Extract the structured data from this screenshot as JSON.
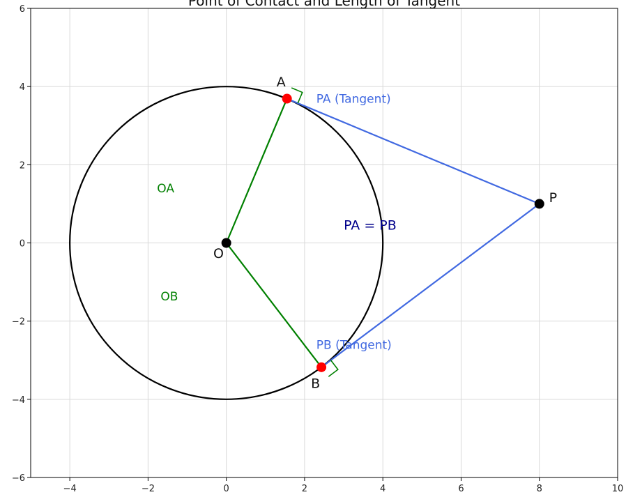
{
  "chart_data": {
    "type": "scatter",
    "title": "Point of Contact and Length of Tangent",
    "xlabel": "",
    "ylabel": "",
    "xlim": [
      -5,
      10
    ],
    "ylim": [
      -6,
      6
    ],
    "xticks": [
      -4,
      -2,
      0,
      2,
      4,
      6,
      8,
      10
    ],
    "yticks": [
      -6,
      -4,
      -2,
      0,
      2,
      4,
      6
    ],
    "xtick_labels": [
      "−4",
      "−2",
      "0",
      "2",
      "4",
      "6",
      "8",
      "10"
    ],
    "ytick_labels": [
      "−6",
      "−4",
      "−2",
      "0",
      "2",
      "4",
      "6"
    ],
    "grid": true,
    "circle": {
      "center": [
        0,
        0
      ],
      "radius": 4,
      "color": "#000000"
    },
    "points": [
      {
        "label": "O",
        "x": 0,
        "y": 0,
        "color": "#000000",
        "label_dx": -0.2,
        "label_dy": -0.28
      },
      {
        "label": "P",
        "x": 8,
        "y": 1,
        "color": "#000000",
        "label_dx": 0.35,
        "label_dy": 0.15
      },
      {
        "label": "A",
        "x": 1.55,
        "y": 3.69,
        "color": "#ff0000",
        "label_dx": -0.15,
        "label_dy": 0.42
      },
      {
        "label": "B",
        "x": 2.43,
        "y": -3.18,
        "color": "#ff0000",
        "label_dx": -0.15,
        "label_dy": -0.42
      }
    ],
    "segments": [
      {
        "name": "OA",
        "from": [
          0,
          0
        ],
        "to": [
          1.55,
          3.69
        ],
        "color": "#008000"
      },
      {
        "name": "OB",
        "from": [
          0,
          0
        ],
        "to": [
          2.43,
          -3.18
        ],
        "color": "#008000"
      },
      {
        "name": "PA",
        "from": [
          8,
          1
        ],
        "to": [
          1.55,
          3.69
        ],
        "color": "#4169e1"
      },
      {
        "name": "PB",
        "from": [
          8,
          1
        ],
        "to": [
          2.43,
          -3.18
        ],
        "color": "#4169e1"
      }
    ],
    "right_angles": [
      {
        "vertex": [
          1.55,
          3.69
        ],
        "size": 0.3,
        "color": "#008000"
      },
      {
        "vertex": [
          2.43,
          -3.18
        ],
        "size": 0.3,
        "color": "#008000"
      }
    ],
    "annotations": [
      {
        "text": "PA (Tangent)",
        "x": 2.3,
        "y": 3.69,
        "color": "#4169e1"
      },
      {
        "text": "PB (Tangent)",
        "x": 2.3,
        "y": -2.6,
        "color": "#4169e1"
      },
      {
        "text": "OA",
        "x": -1.77,
        "y": 1.4,
        "color": "#008000"
      },
      {
        "text": "OB",
        "x": -1.68,
        "y": -1.36,
        "color": "#008000"
      },
      {
        "text": "PA = PB",
        "x": 3.0,
        "y": 0.45,
        "color": "#00008b"
      }
    ]
  }
}
